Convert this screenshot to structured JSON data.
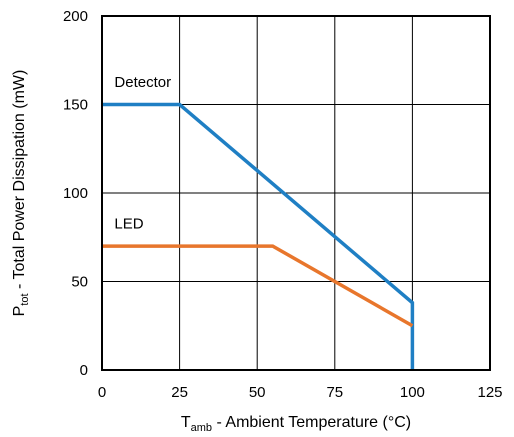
{
  "chart_data": {
    "type": "line",
    "title": "",
    "xlabel": {
      "main": "T",
      "sub": "amb",
      "rest": " - Ambient Temperature (°C)"
    },
    "ylabel": {
      "main": "P",
      "sub": "tot",
      "rest": " - Total Power Dissipation (mW)"
    },
    "xlim": [
      0,
      125
    ],
    "ylim": [
      0,
      200
    ],
    "xticks": [
      0,
      25,
      50,
      75,
      100,
      125
    ],
    "yticks": [
      0,
      50,
      100,
      150,
      200
    ],
    "grid": true,
    "legend": "inline-labels",
    "series": [
      {
        "name": "Detector",
        "color": "#1f7fc4",
        "x": [
          0,
          25,
          100,
          100
        ],
        "y": [
          150,
          150,
          38,
          0
        ]
      },
      {
        "name": "LED",
        "color": "#e8762c",
        "x": [
          0,
          55,
          100
        ],
        "y": [
          70,
          70,
          25
        ]
      }
    ],
    "series_label_anchor": [
      {
        "x": 4,
        "y": 160
      },
      {
        "x": 4,
        "y": 80
      }
    ]
  }
}
